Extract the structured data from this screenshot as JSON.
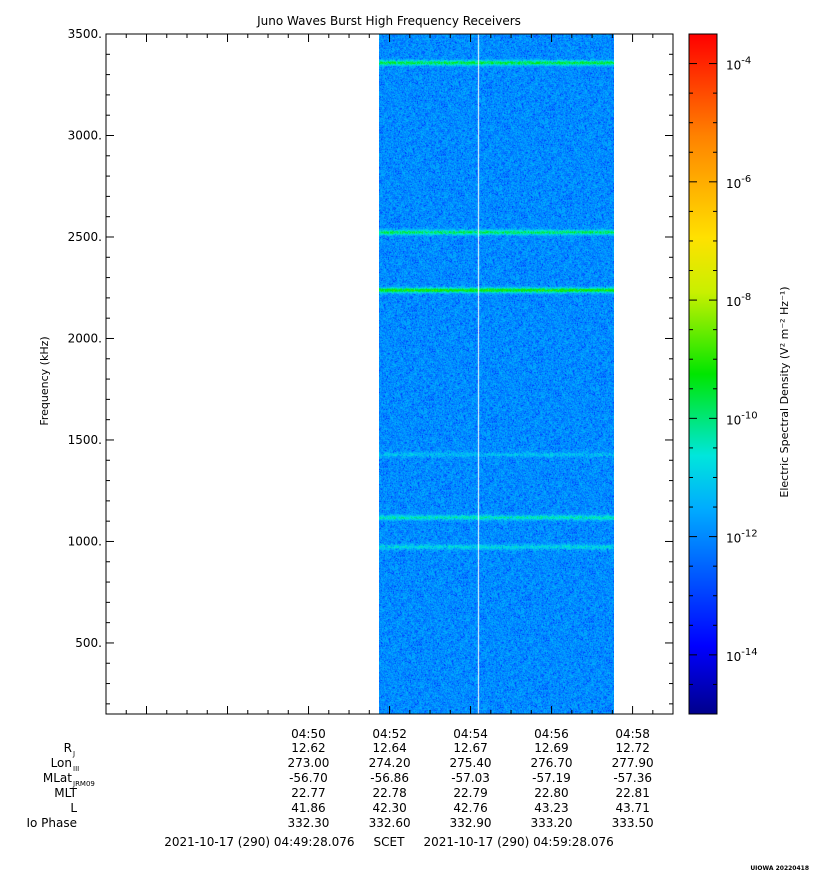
{
  "chart_data": {
    "type": "heatmap",
    "title": "Juno Waves Burst High Frequency Receivers",
    "ylabel": "Frequency (kHz)",
    "ylim": [
      150,
      3500
    ],
    "y_ticks": [
      {
        "value": 500,
        "label": "500."
      },
      {
        "value": 1000,
        "label": "1000."
      },
      {
        "value": 1500,
        "label": "1500."
      },
      {
        "value": 2000,
        "label": "2000."
      },
      {
        "value": 2500,
        "label": "2500."
      },
      {
        "value": 3000,
        "label": "3000."
      },
      {
        "value": 3500,
        "label": "3500."
      }
    ],
    "x_range_minutes": [
      4.75,
      4.9833
    ],
    "x_ticks": [
      {
        "minutes": 4.8333,
        "label": "04:50"
      },
      {
        "minutes": 4.8667,
        "label": "04:52"
      },
      {
        "minutes": 4.9,
        "label": "04:54"
      },
      {
        "minutes": 4.9333,
        "label": "04:56"
      },
      {
        "minutes": 4.9667,
        "label": "04:58"
      }
    ],
    "data_time_span": [
      "04:51:44",
      "04:57:32"
    ],
    "gap_line_time": "04:54:11",
    "emission_bands_khz": [
      {
        "frequency": 3360,
        "level_log10": -9.6
      },
      {
        "frequency": 2525,
        "level_log10": -9.8
      },
      {
        "frequency": 2240,
        "level_log10": -9.2
      },
      {
        "frequency": 1430,
        "level_log10": -11.2
      },
      {
        "frequency": 1120,
        "level_log10": -10.4
      },
      {
        "frequency": 975,
        "level_log10": -10.8
      }
    ],
    "background_level_log10": -11.9,
    "colorbar": {
      "label": "Electric Spectral Density (V² m⁻² Hz⁻¹)",
      "range_log10": [
        -15,
        -3.5
      ],
      "ticks": [
        {
          "value": -14,
          "label": "10",
          "exp": "-14"
        },
        {
          "value": -12,
          "label": "10",
          "exp": "-12"
        },
        {
          "value": -10,
          "label": "10",
          "exp": "-10"
        },
        {
          "value": -8,
          "label": "10",
          "exp": "-8"
        },
        {
          "value": -6,
          "label": "10",
          "exp": "-6"
        },
        {
          "value": -4,
          "label": "10",
          "exp": "-4"
        }
      ]
    },
    "ephemeris": {
      "rows": [
        {
          "label": "R",
          "sub": "J",
          "values": [
            "12.62",
            "12.64",
            "12.67",
            "12.69",
            "12.72"
          ]
        },
        {
          "label": "Lon",
          "sub": "III",
          "values": [
            "273.00",
            "274.20",
            "275.40",
            "276.70",
            "277.90"
          ]
        },
        {
          "label": "MLat",
          "sub": "JRM09",
          "values": [
            "-56.70",
            "-56.86",
            "-57.03",
            "-57.19",
            "-57.36"
          ]
        },
        {
          "label": "MLT",
          "sub": "",
          "values": [
            "22.77",
            "22.78",
            "22.79",
            "22.80",
            "22.81"
          ]
        },
        {
          "label": "L",
          "sub": "",
          "values": [
            "41.86",
            "42.30",
            "42.76",
            "43.23",
            "43.71"
          ]
        },
        {
          "label": "Io Phase",
          "sub": "",
          "values": [
            "332.30",
            "332.60",
            "332.90",
            "333.20",
            "333.50"
          ]
        }
      ]
    },
    "time_range_text": "2021-10-17 (290) 04:49:28.076     SCET     2021-10-17 (290) 04:59:28.076",
    "footer": "UIOWA 20220418"
  }
}
